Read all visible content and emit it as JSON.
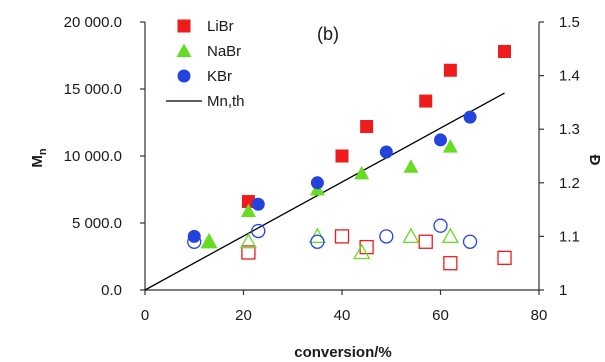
{
  "chart_data": {
    "type": "scatter",
    "panel_label": "(b)",
    "xlabel": "conversion/%",
    "ylabel_main": "M",
    "ylabel_sub": "n",
    "y2label": "Đ",
    "xlim": [
      0,
      80
    ],
    "ylim": [
      0,
      20000
    ],
    "y2lim": [
      1,
      1.5
    ],
    "x_ticks": [
      0,
      20,
      40,
      60,
      80
    ],
    "x_tick_labels": [
      "0",
      "20",
      "40",
      "60",
      "80"
    ],
    "y_ticks": [
      0,
      5000,
      10000,
      15000,
      20000
    ],
    "y_tick_labels": [
      "0.0",
      "5 000.0",
      "10 000.0",
      "15 000.0",
      "20 000.0"
    ],
    "y2_ticks": [
      1,
      1.1,
      1.2,
      1.3,
      1.4,
      1.5
    ],
    "y2_tick_labels": [
      "1",
      "1.1",
      "1.2",
      "1.3",
      "1.4",
      "1.5"
    ],
    "colors": {
      "LiBr": "#ee1c1c",
      "NaBr": "#66dd22",
      "KBr": "#2244dd",
      "theory": "#000000",
      "axis": "#333333"
    },
    "legend": {
      "position": "top-left",
      "entries": [
        {
          "label": "LiBr",
          "marker": "square"
        },
        {
          "label": "NaBr",
          "marker": "triangle"
        },
        {
          "label": "KBr",
          "marker": "circle"
        },
        {
          "label": "Mn,th",
          "marker": "line"
        }
      ]
    },
    "series": [
      {
        "name": "LiBr",
        "axis": "left",
        "marker": "square",
        "filled": true,
        "x": [
          21,
          40,
          45,
          57,
          62,
          73
        ],
        "y": [
          6600,
          10000,
          12200,
          14100,
          16400,
          17800
        ]
      },
      {
        "name": "NaBr",
        "axis": "left",
        "marker": "triangle",
        "filled": true,
        "x": [
          13,
          21,
          35,
          44,
          54,
          62
        ],
        "y": [
          3600,
          5900,
          7500,
          8700,
          9200,
          10700
        ]
      },
      {
        "name": "KBr",
        "axis": "left",
        "marker": "circle",
        "filled": true,
        "x": [
          10,
          23,
          35,
          49,
          60,
          66
        ],
        "y": [
          4000,
          6400,
          8000,
          10300,
          11200,
          12900
        ]
      },
      {
        "name": "LiBr",
        "axis": "right",
        "marker": "square",
        "filled": false,
        "x": [
          21,
          40,
          45,
          57,
          62,
          73
        ],
        "y": [
          1.07,
          1.1,
          1.08,
          1.09,
          1.05,
          1.06
        ]
      },
      {
        "name": "NaBr",
        "axis": "right",
        "marker": "triangle",
        "filled": false,
        "x": [
          13,
          21,
          35,
          44,
          54,
          62
        ],
        "y": [
          1.09,
          1.09,
          1.1,
          1.07,
          1.1,
          1.1
        ]
      },
      {
        "name": "KBr",
        "axis": "right",
        "marker": "circle",
        "filled": false,
        "x": [
          10,
          23,
          35,
          49,
          60,
          66
        ],
        "y": [
          1.09,
          1.11,
          1.09,
          1.1,
          1.12,
          1.09
        ]
      },
      {
        "name": "Mn,th",
        "axis": "left",
        "marker": "line",
        "x": [
          0,
          73
        ],
        "y": [
          0,
          14700
        ]
      }
    ]
  }
}
